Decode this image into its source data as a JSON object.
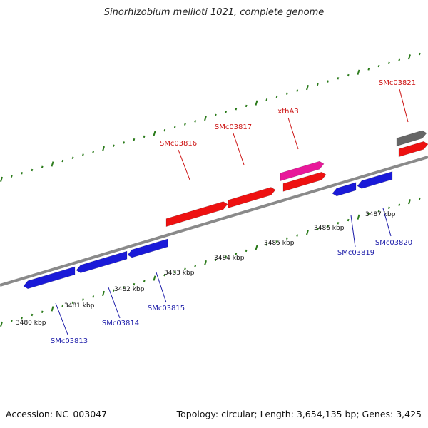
{
  "title": "Sinorhizobium meliloti 1021, complete genome",
  "footer": {
    "accession": "Accession: NC_003047",
    "summary": "Topology: circular; Length: 3,654,135 bp; Genes: 3,425"
  },
  "colors": {
    "backbone": "#8a8a8a",
    "tick": "#2a7a1a",
    "forward_gene": "#ee1111",
    "reverse_gene": "#1a1ad8",
    "highlight_gene": "#e8189a",
    "other_gene": "#666666",
    "forward_label": "#cc1111",
    "reverse_label": "#1a1aa8",
    "kbp_label": "#111111"
  },
  "scale": {
    "unit": "kbp",
    "labels": [
      "3480 kbp",
      "3481 kbp",
      "3482 kbp",
      "3483 kbp",
      "3484 kbp",
      "3485 kbp",
      "3486 kbp",
      "3487 kbp"
    ]
  },
  "genes": {
    "forward": [
      {
        "label": "SMc03816",
        "track": "forward",
        "color": "red"
      },
      {
        "label": "SMc03817",
        "track": "forward",
        "color": "red"
      },
      {
        "label": "xthA3",
        "track": "forward",
        "color": "red"
      },
      {
        "label": "",
        "track": "forward-outer",
        "color": "pink"
      },
      {
        "label": "SMc03821",
        "track": "forward",
        "color": "red"
      },
      {
        "label": "",
        "track": "forward-outer",
        "color": "gray"
      }
    ],
    "reverse": [
      {
        "label": "SMc03813",
        "track": "reverse",
        "color": "blue"
      },
      {
        "label": "SMc03814",
        "track": "reverse",
        "color": "blue"
      },
      {
        "label": "SMc03815",
        "track": "reverse",
        "color": "blue"
      },
      {
        "label": "SMc03819",
        "track": "reverse",
        "color": "blue"
      },
      {
        "label": "SMc03820",
        "track": "reverse",
        "color": "blue"
      }
    ]
  }
}
